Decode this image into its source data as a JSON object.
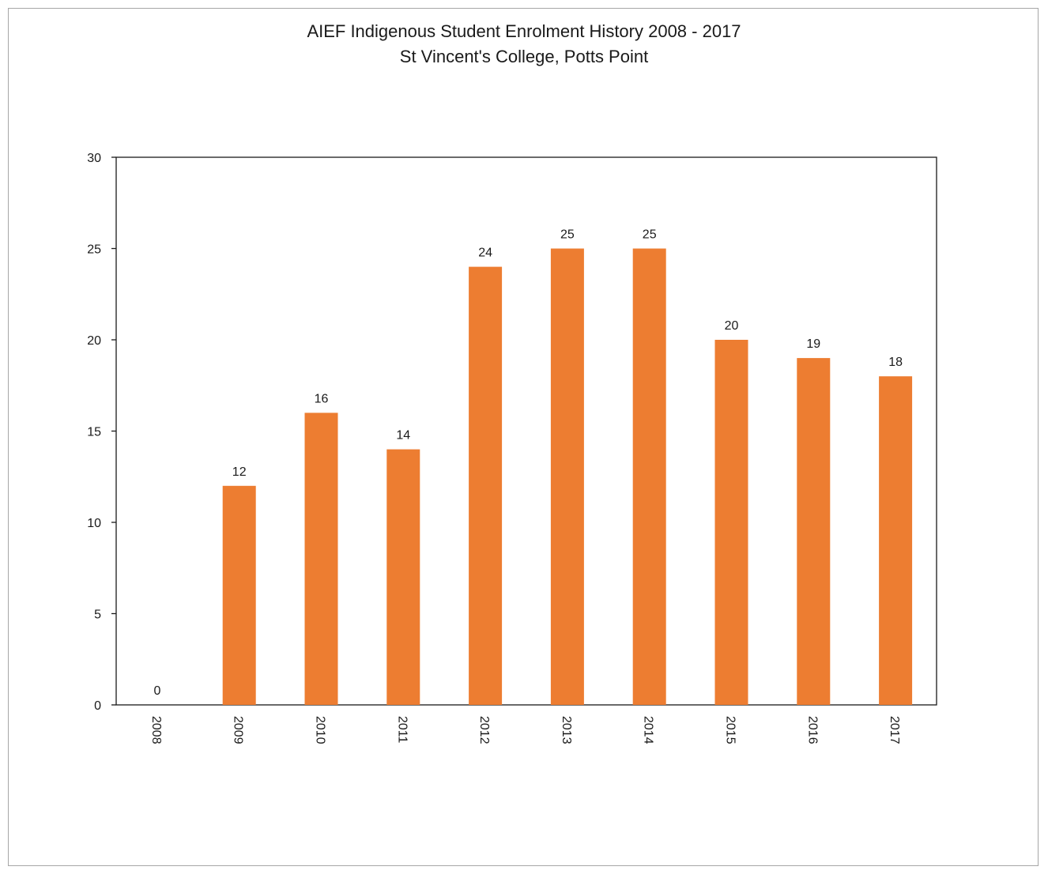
{
  "chart_data": {
    "type": "bar",
    "title": "AIEF Indigenous Student Enrolment History 2008  - 2017",
    "subtitle": "St Vincent's College, Potts Point",
    "xlabel": "",
    "ylabel": "",
    "categories": [
      "2008",
      "2009",
      "2010",
      "2011",
      "2012",
      "2013",
      "2014",
      "2015",
      "2016",
      "2017"
    ],
    "values": [
      0,
      12,
      16,
      14,
      24,
      25,
      25,
      20,
      19,
      18
    ],
    "ylim": [
      0,
      30
    ],
    "yticks": [
      0,
      5,
      10,
      15,
      20,
      25,
      30
    ],
    "bar_color": "#ed7d31",
    "data_labels": true,
    "grid": false,
    "legend": "none"
  }
}
